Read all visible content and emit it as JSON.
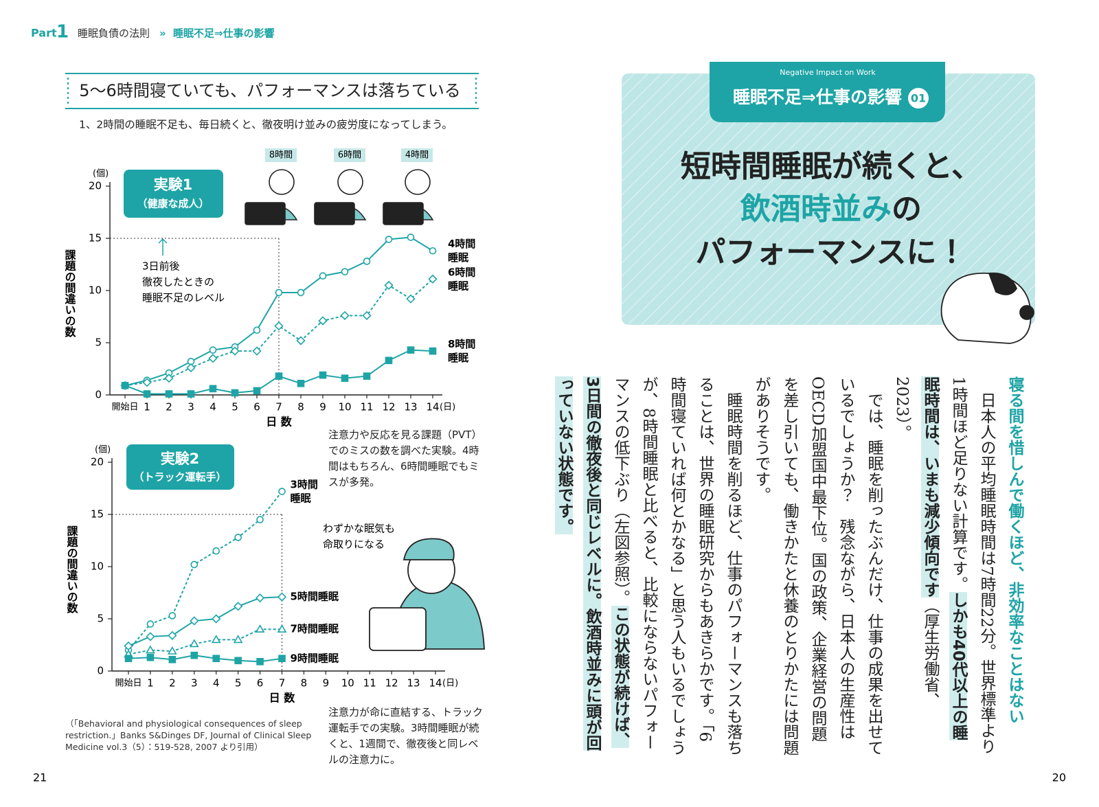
{
  "header": {
    "part": "Part",
    "part_number": "1",
    "book_section": "睡眠負債の法則",
    "separator": "»",
    "topic": "睡眠不足⇒仕事の影響"
  },
  "left_page": {
    "section_title": "5～6時間寝ていても、パフォーマンスは落ちている",
    "subtitle": "1、2時間の睡眠不足も、毎日続くと、徹夜明け並みの疲労度になってしまう。",
    "illustration_labels": [
      "8時間",
      "6時間",
      "4時間"
    ],
    "notes": [
      "注意力や反応を見る課題（PVT）でのミスの数を調べた実験。4時間はもちろん、6時間睡眠でもミスが多発。",
      "注意力が命に直結する、トラック運転手での実験。3時間睡眠が続くと、1週間で、徹夜後と同レベルの注意力に。"
    ],
    "citation": "（「Behavioral and physiological consequences of sleep restriction.」Banks S&Dinges DF, Journal of Clinical Sleep Medicine vol.3（5）：519-528, 2007 より引用）",
    "page_number": "21"
  },
  "chart_data": [
    {
      "type": "line",
      "badge": "実験1",
      "badge_subtitle": "（健康な成人）",
      "y_unit": "(個)",
      "ylabel": "課題の間違いの数",
      "xlabel": "日 数",
      "x_unit": "(日)",
      "x": [
        0,
        1,
        2,
        3,
        4,
        5,
        6,
        7,
        8,
        9,
        10,
        11,
        12,
        13,
        14
      ],
      "xlim": [
        0,
        14
      ],
      "xticks": [
        {
          "value": 0,
          "label": "開始日"
        },
        1,
        2,
        3,
        4,
        5,
        6,
        7,
        8,
        9,
        10,
        11,
        12,
        13,
        14
      ],
      "ylim": [
        0,
        20
      ],
      "yticks": [
        0,
        5,
        10,
        15,
        20
      ],
      "reference_y": 15,
      "reference_x": 7,
      "annotation": [
        "3日前後",
        "徹夜したときの",
        "睡眠不足のレベル"
      ],
      "series": [
        {
          "name": "4時間睡眠",
          "color": "#1ea4a6",
          "marker": "circle",
          "filled": false,
          "dashed": false,
          "values": [
            0.9,
            1.4,
            2.1,
            3.2,
            4.3,
            4.6,
            6.2,
            9.8,
            9.8,
            11.4,
            11.8,
            12.8,
            14.9,
            15.1,
            13.8
          ]
        },
        {
          "name": "6時間睡眠",
          "color": "#1ea4a6",
          "marker": "diamond",
          "filled": false,
          "dashed": true,
          "values": [
            0.9,
            1.2,
            1.6,
            2.6,
            3.5,
            4.2,
            4.2,
            6.6,
            5.2,
            7.1,
            7.6,
            7.6,
            10.5,
            9.2,
            11.1
          ]
        },
        {
          "name": "8時間睡眠",
          "color": "#1ea4a6",
          "marker": "square",
          "filled": true,
          "dashed": false,
          "values": [
            0.9,
            0.1,
            0.1,
            0.1,
            0.6,
            0.2,
            0.4,
            1.8,
            1.1,
            1.9,
            1.6,
            1.8,
            3.3,
            4.3,
            4.2
          ]
        }
      ]
    },
    {
      "type": "line",
      "badge": "実験2",
      "badge_subtitle": "（トラック運転手）",
      "y_unit": "(個)",
      "ylabel": "課題の間違いの数",
      "xlabel": "日 数",
      "x_unit": "(日)",
      "x": [
        0,
        1,
        2,
        3,
        4,
        5,
        6,
        7
      ],
      "xlim": [
        0,
        14
      ],
      "xticks": [
        {
          "value": 0,
          "label": "開始日"
        },
        1,
        2,
        3,
        4,
        5,
        6,
        7,
        8,
        9,
        10,
        11,
        12,
        13,
        14
      ],
      "ylim": [
        0,
        20
      ],
      "yticks": [
        0,
        5,
        10,
        15,
        20
      ],
      "reference_y": 15,
      "reference_x": 7,
      "annotation": [
        "わずかな眠気も",
        "命取りになる"
      ],
      "series": [
        {
          "name": "3時間睡眠",
          "color": "#1ea4a6",
          "marker": "circle",
          "filled": false,
          "dashed": true,
          "values": [
            2.0,
            4.5,
            5.3,
            10.2,
            11.5,
            12.8,
            14.5,
            17.2
          ]
        },
        {
          "name": "5時間睡眠",
          "color": "#1ea4a6",
          "marker": "diamond",
          "filled": false,
          "dashed": false,
          "values": [
            2.4,
            3.3,
            3.4,
            4.8,
            5.0,
            6.2,
            7.0,
            7.1
          ]
        },
        {
          "name": "7時間睡眠",
          "color": "#1ea4a6",
          "marker": "triangle",
          "filled": false,
          "dashed": true,
          "values": [
            1.6,
            2.0,
            1.9,
            2.6,
            3.0,
            3.0,
            4.0,
            4.0
          ]
        },
        {
          "name": "9時間睡眠",
          "color": "#1ea4a6",
          "marker": "square",
          "filled": true,
          "dashed": false,
          "values": [
            1.2,
            1.3,
            1.1,
            1.5,
            1.2,
            1.0,
            0.9,
            1.2
          ]
        }
      ]
    }
  ],
  "right_page": {
    "tag": "Negative Impact on Work",
    "banner_title": "睡眠不足⇒仕事の影響",
    "banner_number": "01",
    "headline": [
      [
        {
          "text": "短時間睡眠が続くと、"
        }
      ],
      [
        {
          "text": "飲酒時並み",
          "emphasis": true
        },
        {
          "text": "の"
        }
      ],
      [
        {
          "text": "パフォーマンスに！"
        }
      ]
    ],
    "lead": "寝る間を惜しんで働くほど、非効率なことはない",
    "body": [
      [
        {
          "text": "日本人の平均睡眠時間は7時間22分。世界標準より1時間ほど足りない計算です。"
        },
        {
          "text": "しかも40代以上の睡眠時間は、いまも減少傾向です",
          "emphasis": true
        },
        {
          "text": "（厚生労働省、2023）。"
        }
      ],
      [
        {
          "text": "では、睡眠を削ったぶんだけ、仕事の成果を出せているでしょうか？　残念ながら、日本人の生産性はOECD加盟国中最下位。国の政策、企業経営の問題を差し引いても、働きかたと休養のとりかたには問題がありそうです。"
        }
      ],
      [
        {
          "text": "睡眠時間を削るほど、仕事のパフォーマンスも落ちることは、世界の睡眠研究からもあきらかです。「6時間寝ていれば何とかなる」と思う人もいるでしょうが、8時間睡眠と比べると、比較にならないパフォーマンスの低下ぶり（左図参照）。"
        },
        {
          "text": "この状態が続けば、3日間の徹夜後と同じレベルに。飲酒時並みに頭が回っていない状態です。",
          "emphasis": true
        }
      ]
    ],
    "page_number": "20"
  }
}
